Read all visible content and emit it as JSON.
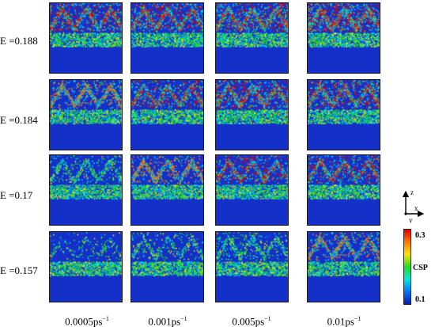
{
  "rows": [
    {
      "label": "Ε =0.188"
    },
    {
      "label": "Ε =0.184"
    },
    {
      "label": "Ε =0.17"
    },
    {
      "label": "Ε =0.157"
    }
  ],
  "columns": [
    {
      "base": "0.0005ps",
      "exp": "−1"
    },
    {
      "base": "0.001ps",
      "exp": "−1"
    },
    {
      "base": "0.005ps",
      "exp": "−1"
    },
    {
      "base": "0.01ps",
      "exp": "−1"
    }
  ],
  "axes": {
    "vertical": "z",
    "horizontal": "x",
    "out_of_plane": "y"
  },
  "colorbar": {
    "title": "CSP",
    "max_label": "0.3",
    "min_label": "0.1",
    "colors": [
      "#0a1aa8",
      "#0077ff",
      "#00e8e0",
      "#22dd22",
      "#ffe400",
      "#ff7a00",
      "#e00000"
    ]
  },
  "field": {
    "background": "#1c2ec0",
    "base_blue": "#1430c8"
  }
}
